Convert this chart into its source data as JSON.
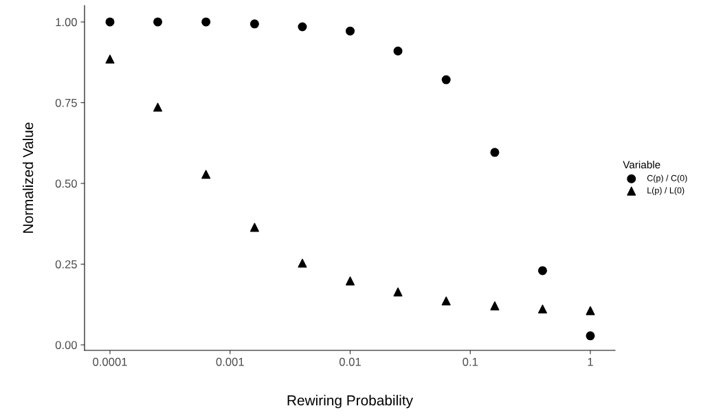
{
  "chart_data": {
    "type": "scatter",
    "xlabel": "Rewiring Probability",
    "ylabel": "Normalized Value",
    "legend_title": "Variable",
    "legend": "right",
    "log": "x",
    "grid": false,
    "x": [
      0.0001,
      0.00025,
      0.00063,
      0.0016,
      0.004,
      0.01,
      0.025,
      0.063,
      0.16,
      0.4,
      1
    ],
    "series": [
      {
        "name": "C(p) / C(0)",
        "color": "#000000",
        "marker": "circle",
        "values": [
          1.0,
          1.0,
          1.0,
          0.994,
          0.985,
          0.972,
          0.91,
          0.821,
          0.596,
          0.23,
          0.028
        ]
      },
      {
        "name": "L(p) / L(0)",
        "color": "#000000",
        "marker": "triangle",
        "values": [
          0.885,
          0.736,
          0.528,
          0.364,
          0.253,
          0.198,
          0.164,
          0.136,
          0.121,
          0.111,
          0.106
        ]
      }
    ],
    "xlim": [
      6.14e-05,
      1.607
    ],
    "xticks": [
      {
        "value": 0.0001,
        "label": "0.0001"
      },
      {
        "value": 0.001,
        "label": "0.001"
      },
      {
        "value": 0.01,
        "label": "0.01"
      },
      {
        "value": 0.1,
        "label": "0.1"
      },
      {
        "value": 1,
        "label": "1"
      }
    ],
    "ylim": [
      -0.017,
      1.051
    ],
    "yticks": [
      {
        "value": 0,
        "label": "0.00"
      },
      {
        "value": 0.25,
        "label": "0.25"
      },
      {
        "value": 0.5,
        "label": "0.50"
      },
      {
        "value": 0.75,
        "label": "0.75"
      },
      {
        "value": 1,
        "label": "1.00"
      }
    ]
  }
}
